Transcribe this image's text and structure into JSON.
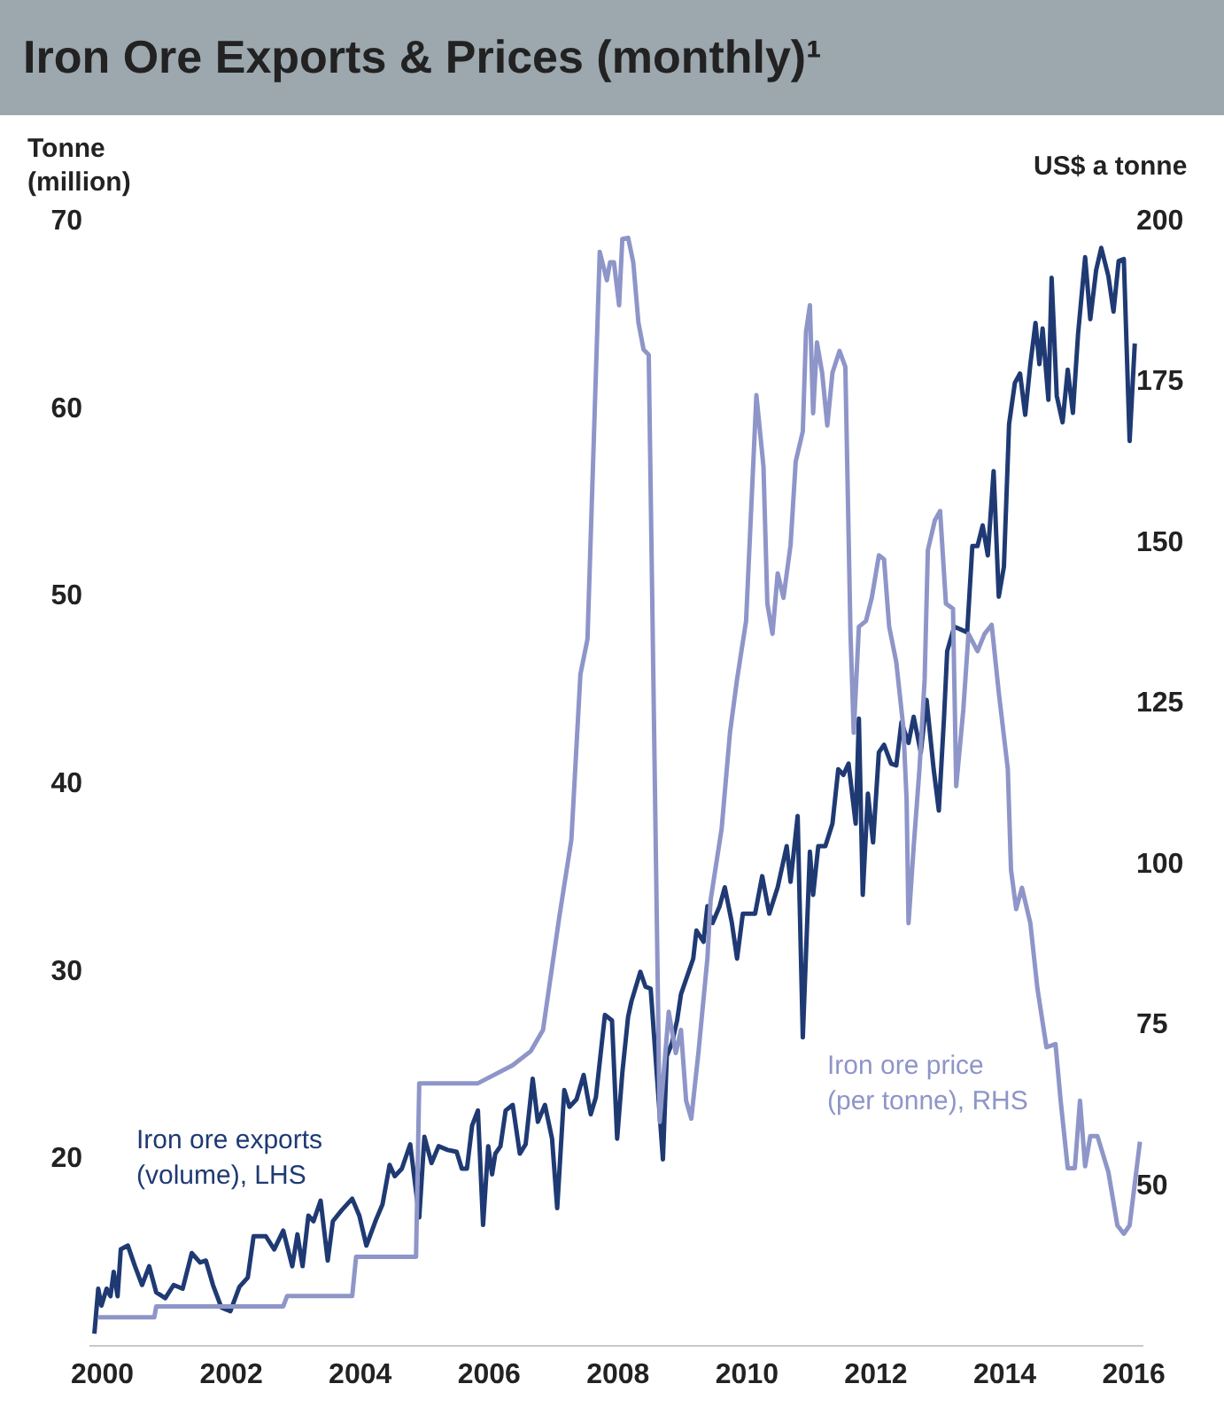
{
  "chart_data": {
    "type": "line",
    "title": "Iron Ore Exports & Prices (monthly)¹",
    "ylabel": "Tonne\n(million)",
    "y2label": "US$ a tonne",
    "xlim": [
      1999.8,
      2016.15
    ],
    "xticks": [
      2000,
      2002,
      2004,
      2006,
      2008,
      2010,
      2012,
      2014,
      2016
    ],
    "ylim": [
      10,
      70
    ],
    "yticks": [
      20,
      30,
      40,
      50,
      60,
      70
    ],
    "y2lim": [
      25,
      200
    ],
    "y2ticks": [
      50,
      75,
      100,
      125,
      150,
      175,
      200
    ],
    "series": [
      {
        "name": "Iron ore exports\n(volume), LHS",
        "color": "#1f3a73",
        "axis": "y",
        "x": [
          1999.89,
          1999.95,
          2000.0,
          2000.08,
          2000.14,
          2000.19,
          2000.25,
          2000.3,
          2000.41,
          2000.52,
          2000.63,
          2000.74,
          2000.85,
          2000.99,
          2001.12,
          2001.26,
          2001.4,
          2001.53,
          2001.62,
          2001.73,
          2001.86,
          2002.0,
          2002.14,
          2002.27,
          2002.36,
          2002.55,
          2002.68,
          2002.82,
          2002.96,
          2003.04,
          2003.12,
          2003.21,
          2003.29,
          2003.4,
          2003.51,
          2003.59,
          2003.73,
          2003.89,
          2004.0,
          2004.11,
          2004.25,
          2004.36,
          2004.47,
          2004.55,
          2004.66,
          2004.79,
          2004.93,
          2005.01,
          2005.12,
          2005.23,
          2005.37,
          2005.51,
          2005.59,
          2005.67,
          2005.75,
          2005.84,
          2005.92,
          2006.0,
          2006.06,
          2006.11,
          2006.19,
          2006.27,
          2006.38,
          2006.49,
          2006.58,
          2006.69,
          2006.77,
          2006.88,
          2006.99,
          2007.07,
          2007.18,
          2007.26,
          2007.37,
          2007.48,
          2007.59,
          2007.67,
          2007.81,
          2007.92,
          2008.0,
          2008.08,
          2008.17,
          2008.22,
          2008.36,
          2008.44,
          2008.52,
          2008.71,
          2008.77,
          2008.85,
          2008.93,
          2008.99,
          2009.18,
          2009.23,
          2009.34,
          2009.4,
          2009.48,
          2009.59,
          2009.67,
          2009.78,
          2009.86,
          2009.95,
          2010.06,
          2010.14,
          2010.25,
          2010.36,
          2010.49,
          2010.63,
          2010.69,
          2010.8,
          2010.88,
          2010.99,
          2011.04,
          2011.12,
          2011.23,
          2011.34,
          2011.43,
          2011.51,
          2011.59,
          2011.7,
          2011.75,
          2011.81,
          2011.89,
          2011.97,
          2012.06,
          2012.14,
          2012.25,
          2012.33,
          2012.41,
          2012.52,
          2012.6,
          2012.71,
          2012.8,
          2012.91,
          2012.99,
          2013.07,
          2013.12,
          2013.23,
          2013.43,
          2013.51,
          2013.59,
          2013.67,
          2013.75,
          2013.84,
          2013.92,
          2014.0,
          2014.08,
          2014.17,
          2014.25,
          2014.33,
          2014.41,
          2014.49,
          2014.55,
          2014.6,
          2014.69,
          2014.74,
          2014.82,
          2014.91,
          2014.99,
          2015.07,
          2015.15,
          2015.26,
          2015.34,
          2015.43,
          2015.51,
          2015.62,
          2015.7,
          2015.78,
          2015.86,
          2015.95,
          2016.03
        ],
        "values": [
          10.6,
          13.0,
          12.1,
          13.0,
          12.6,
          13.9,
          12.6,
          15.1,
          15.3,
          14.2,
          13.2,
          14.2,
          12.8,
          12.5,
          13.2,
          13.0,
          14.9,
          14.4,
          14.5,
          13.2,
          12.0,
          11.8,
          13.1,
          13.6,
          15.8,
          15.8,
          15.1,
          16.1,
          14.2,
          15.9,
          14.2,
          16.9,
          16.6,
          17.7,
          14.5,
          16.6,
          17.2,
          17.8,
          16.9,
          15.3,
          16.6,
          17.5,
          19.6,
          19.0,
          19.4,
          20.7,
          16.8,
          21.1,
          19.7,
          20.6,
          20.4,
          20.3,
          19.4,
          19.4,
          21.7,
          22.5,
          16.4,
          20.6,
          19.1,
          20.2,
          20.6,
          22.5,
          22.8,
          20.2,
          20.7,
          24.2,
          21.9,
          22.8,
          21.0,
          17.3,
          23.6,
          22.7,
          23.1,
          24.4,
          22.3,
          23.2,
          27.6,
          27.3,
          21.0,
          24.5,
          27.5,
          28.3,
          29.9,
          29.1,
          29.0,
          19.9,
          25.4,
          26.1,
          27.3,
          28.7,
          30.6,
          32.1,
          31.5,
          33.4,
          32.5,
          33.4,
          34.4,
          32.5,
          30.6,
          33.0,
          33.0,
          33.0,
          35.0,
          33.0,
          34.4,
          36.6,
          34.7,
          38.2,
          26.4,
          36.3,
          34.0,
          36.6,
          36.6,
          37.8,
          40.7,
          40.4,
          41.0,
          37.8,
          43.4,
          34.0,
          39.4,
          36.8,
          41.6,
          42.0,
          41.0,
          40.9,
          43.2,
          42.1,
          43.5,
          41.6,
          44.4,
          40.7,
          38.5,
          43.4,
          47.0,
          48.3,
          48.0,
          52.6,
          52.6,
          53.7,
          52.1,
          56.6,
          49.9,
          51.5,
          59.1,
          61.3,
          61.8,
          59.6,
          62.3,
          64.5,
          62.3,
          64.2,
          60.4,
          66.9,
          60.6,
          59.2,
          62.0,
          59.7,
          63.9,
          68.0,
          64.7,
          67.3,
          68.5,
          67.0,
          65.1,
          67.8,
          67.9,
          58.2,
          63.4
        ]
      },
      {
        "name": "Iron ore price\n(per tonne), RHS",
        "color": "#8e95c8",
        "axis": "y2",
        "x": [
          1999.95,
          2000.82,
          2000.85,
          2002.82,
          2002.88,
          2003.89,
          2003.95,
          2004.88,
          2004.93,
          2005.84,
          2006.38,
          2006.66,
          2006.85,
          2007.1,
          2007.29,
          2007.43,
          2007.54,
          2007.73,
          2007.84,
          2007.89,
          2007.95,
          2008.03,
          2008.08,
          2008.17,
          2008.25,
          2008.33,
          2008.41,
          2008.49,
          2008.66,
          2008.8,
          2008.91,
          2008.99,
          2009.07,
          2009.15,
          2009.26,
          2009.4,
          2009.45,
          2009.51,
          2009.62,
          2009.75,
          2009.86,
          2010.0,
          2010.16,
          2010.27,
          2010.33,
          2010.41,
          2010.49,
          2010.58,
          2010.69,
          2010.77,
          2010.88,
          2010.93,
          2010.99,
          2011.04,
          2011.1,
          2011.18,
          2011.26,
          2011.34,
          2011.45,
          2011.54,
          2011.62,
          2011.67,
          2011.75,
          2011.86,
          2011.95,
          2012.06,
          2012.14,
          2012.22,
          2012.33,
          2012.44,
          2012.49,
          2012.52,
          2012.6,
          2012.69,
          2012.77,
          2012.82,
          2012.93,
          2013.01,
          2013.1,
          2013.21,
          2013.26,
          2013.37,
          2013.45,
          2013.59,
          2013.7,
          2013.81,
          2013.92,
          2014.06,
          2014.11,
          2014.19,
          2014.28,
          2014.41,
          2014.52,
          2014.66,
          2014.8,
          2014.88,
          2014.99,
          2015.1,
          2015.18,
          2015.26,
          2015.34,
          2015.45,
          2015.62,
          2015.76,
          2015.86,
          2015.95,
          2016.11
        ],
        "values": [
          29.3,
          29.3,
          31.0,
          31.0,
          32.6,
          32.6,
          38.7,
          38.7,
          65.7,
          65.7,
          68.5,
          70.7,
          74.0,
          91.4,
          103.6,
          129.3,
          134.8,
          195.0,
          190.6,
          193.4,
          193.4,
          186.7,
          197.0,
          197.2,
          193.4,
          184.0,
          179.8,
          179.0,
          59.7,
          76.8,
          70.4,
          74.0,
          63.0,
          60.2,
          70.4,
          85.1,
          94.2,
          98.1,
          105.2,
          120.2,
          128.5,
          137.6,
          172.7,
          161.6,
          140.3,
          135.6,
          145.0,
          141.2,
          149.4,
          162.4,
          167.1,
          182.6,
          186.7,
          169.9,
          180.9,
          176.2,
          168.0,
          176.2,
          179.6,
          177.1,
          135.6,
          120.2,
          136.7,
          137.6,
          141.2,
          147.8,
          147.2,
          136.7,
          131.2,
          121.0,
          109.9,
          90.6,
          102.5,
          114.6,
          128.5,
          148.6,
          153.3,
          154.7,
          140.3,
          139.5,
          111.9,
          123.8,
          135.6,
          132.9,
          135.6,
          137.0,
          126.5,
          114.6,
          98.9,
          92.8,
          96.1,
          90.6,
          80.4,
          71.3,
          71.8,
          63.0,
          52.5,
          52.5,
          63.0,
          52.8,
          57.5,
          57.5,
          51.9,
          43.6,
          42.3,
          43.6,
          56.6
        ]
      }
    ]
  }
}
